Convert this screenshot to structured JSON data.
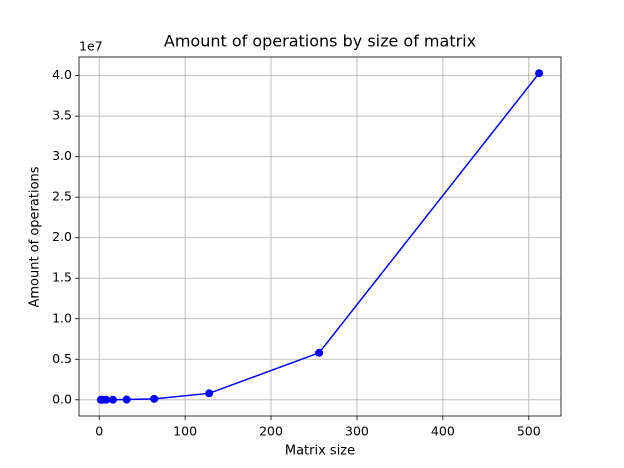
{
  "chart_data": {
    "type": "line",
    "title": "Amount of operations by size of matrix",
    "x_label": "Matrix size",
    "y_label": "Amount of operations",
    "y_offset_label": "1e7",
    "x": [
      2,
      4,
      8,
      16,
      32,
      64,
      128,
      256,
      512
    ],
    "series": [
      {
        "color": "#0000ff",
        "values": [
          0,
          0,
          0,
          0.001,
          0.003,
          0.012,
          0.08,
          0.58,
          4.03
        ]
      }
    ],
    "xlim": [
      -23.5,
      537.5
    ],
    "ylim": [
      -0.2,
      4.23
    ],
    "xticks": [
      0,
      100,
      200,
      300,
      400,
      500
    ],
    "yticks": [
      {
        "value": 0,
        "label": "0.0"
      },
      {
        "value": 0.5,
        "label": "0.5"
      },
      {
        "value": 1,
        "label": "1.0"
      },
      {
        "value": 1.5,
        "label": "1.5"
      },
      {
        "value": 2,
        "label": "2.0"
      },
      {
        "value": 2.5,
        "label": "2.5"
      },
      {
        "value": 3,
        "label": "3.0"
      },
      {
        "value": 3.5,
        "label": "3.5"
      },
      {
        "value": 4,
        "label": "4.0"
      }
    ],
    "grid": true,
    "markers": true
  }
}
